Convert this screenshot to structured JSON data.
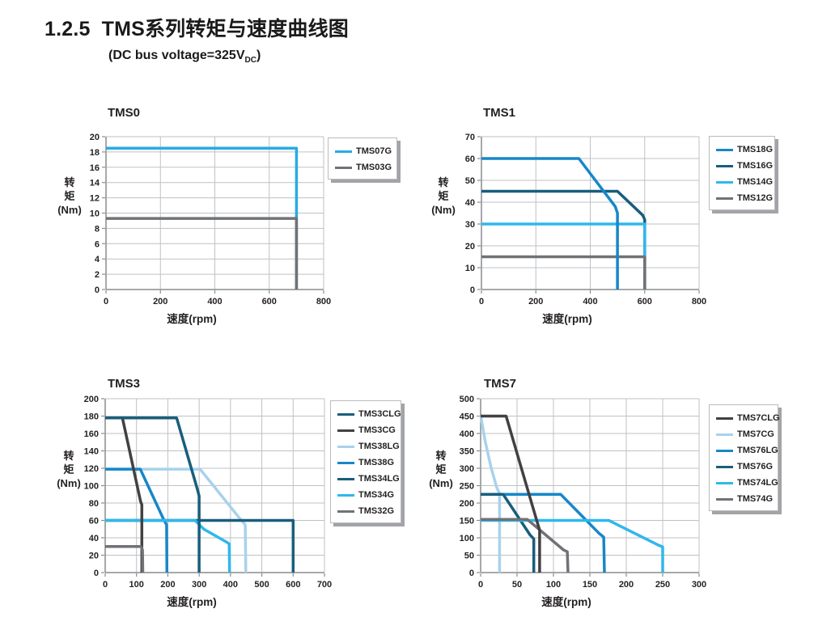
{
  "page": {
    "section_number": "1.2.5",
    "title": "TMS系列转矩与速度曲线图",
    "subtitle": {
      "prefix": "(DC bus voltage=325V",
      "sub": "DC",
      "suffix": ")"
    }
  },
  "colors": {
    "cyan": "#29ABE2",
    "cyan_bright": "#2FB8EC",
    "medium_blue": "#1787C8",
    "dark_blue": "#185E7C",
    "charcoal": "#414042",
    "gray": "#717276",
    "pale_blue": "#A8D2EC",
    "grid": "#BFC1C3",
    "axis": "#8A8C8F",
    "text": "#231F20"
  },
  "chart_data": [
    {
      "id": "tms0",
      "type": "line",
      "title": "TMS0",
      "xlabel": "速度(rpm)",
      "ylabel": "转矩(Nm)",
      "ylabel_lines": [
        "转",
        "矩",
        "(Nm)"
      ],
      "xlim": [
        0,
        800
      ],
      "xstep": 200,
      "ylim": [
        0,
        20
      ],
      "ystep": 2,
      "grid": true,
      "legend_position": "right",
      "series": [
        {
          "name": "TMS07G",
          "color_key": "cyan",
          "points": [
            [
              0,
              18.5
            ],
            [
              700,
              18.5
            ],
            [
              700,
              0
            ]
          ]
        },
        {
          "name": "TMS03G",
          "color_key": "gray",
          "points": [
            [
              0,
              9.3
            ],
            [
              700,
              9.3
            ],
            [
              700,
              0
            ]
          ]
        }
      ],
      "draw_order": [
        0,
        1
      ]
    },
    {
      "id": "tms1",
      "type": "line",
      "title": "TMS1",
      "xlabel": "速度(rpm)",
      "ylabel": "转矩(Nm)",
      "ylabel_lines": [
        "转",
        "矩",
        "(Nm)"
      ],
      "xlim": [
        0,
        800
      ],
      "xstep": 200,
      "ylim": [
        0,
        70
      ],
      "ystep": 10,
      "grid": true,
      "legend_position": "right",
      "series": [
        {
          "name": "TMS18G",
          "color_key": "medium_blue",
          "points": [
            [
              0,
              60
            ],
            [
              358,
              60
            ],
            [
              492,
              38
            ],
            [
              500,
              35
            ],
            [
              500,
              0
            ]
          ]
        },
        {
          "name": "TMS16G",
          "color_key": "dark_blue",
          "points": [
            [
              0,
              45
            ],
            [
              500,
              45
            ],
            [
              593,
              34
            ],
            [
              600,
              32
            ],
            [
              600,
              0
            ]
          ]
        },
        {
          "name": "TMS14G",
          "color_key": "cyan_bright",
          "points": [
            [
              0,
              30
            ],
            [
              600,
              30
            ],
            [
              600,
              0
            ]
          ]
        },
        {
          "name": "TMS12G",
          "color_key": "gray",
          "points": [
            [
              0,
              15
            ],
            [
              600,
              15
            ],
            [
              600,
              0
            ]
          ]
        }
      ],
      "draw_order": [
        1,
        2,
        3,
        0
      ]
    },
    {
      "id": "tms3",
      "type": "line",
      "title": "TMS3",
      "xlabel": "速度(rpm)",
      "ylabel": "转矩(Nm)",
      "ylabel_lines": [
        "转",
        "矩",
        "(Nm)"
      ],
      "xlim": [
        0,
        700
      ],
      "xstep": 100,
      "ylim": [
        0,
        200
      ],
      "ystep": 20,
      "grid": true,
      "legend_position": "right",
      "series": [
        {
          "name": "TMS3CLG",
          "color_key": "dark_blue",
          "points": [
            [
              0,
              178
            ],
            [
              228,
              178
            ],
            [
              295,
              95
            ],
            [
              300,
              88
            ],
            [
              300,
              0
            ]
          ]
        },
        {
          "name": "TMS3CG",
          "color_key": "charcoal",
          "points": [
            [
              0,
              178
            ],
            [
              55,
              178
            ],
            [
              113,
              82
            ],
            [
              117,
              78
            ],
            [
              117,
              0
            ]
          ]
        },
        {
          "name": "TMS38LG",
          "color_key": "pale_blue",
          "points": [
            [
              0,
              119
            ],
            [
              303,
              119
            ],
            [
              430,
              62
            ],
            [
              447,
              55
            ],
            [
              449,
              0
            ]
          ]
        },
        {
          "name": "TMS38G",
          "color_key": "medium_blue",
          "points": [
            [
              0,
              119
            ],
            [
              112,
              119
            ],
            [
              188,
              60
            ],
            [
              196,
              55
            ],
            [
              197,
              0
            ]
          ]
        },
        {
          "name": "TMS34LG",
          "color_key": "dark_blue",
          "points": [
            [
              0,
              60
            ],
            [
              600,
              60
            ],
            [
              600,
              0
            ]
          ]
        },
        {
          "name": "TMS34G",
          "color_key": "cyan_bright",
          "points": [
            [
              0,
              60
            ],
            [
              287,
              60
            ],
            [
              315,
              50
            ],
            [
              388,
              35
            ],
            [
              396,
              33
            ],
            [
              397,
              0
            ]
          ]
        },
        {
          "name": "TMS32G",
          "color_key": "gray",
          "points": [
            [
              0,
              30
            ],
            [
              114,
              30
            ],
            [
              119,
              26
            ],
            [
              120,
              0
            ]
          ]
        }
      ],
      "draw_order": [
        2,
        4,
        3,
        5,
        1,
        6,
        0
      ]
    },
    {
      "id": "tms7",
      "type": "line",
      "title": "TMS7",
      "xlabel": "速度(rpm)",
      "ylabel": "转矩(Nm)",
      "ylabel_lines": [
        "转",
        "矩",
        "(Nm)"
      ],
      "xlim": [
        0,
        300
      ],
      "xstep": 50,
      "ylim": [
        0,
        500
      ],
      "ystep": 50,
      "grid": true,
      "legend_position": "right",
      "series": [
        {
          "name": "TMS7CLG",
          "color_key": "charcoal",
          "points": [
            [
              0,
              450
            ],
            [
              35,
              450
            ],
            [
              77,
              150
            ],
            [
              81,
              122
            ],
            [
              81,
              0
            ]
          ]
        },
        {
          "name": "TMS7CG",
          "color_key": "pale_blue",
          "points": [
            [
              0,
              452
            ],
            [
              6,
              380
            ],
            [
              14,
              305
            ],
            [
              22,
              245
            ],
            [
              26,
              228
            ],
            [
              26,
              0
            ]
          ]
        },
        {
          "name": "TMS76LG",
          "color_key": "medium_blue",
          "points": [
            [
              0,
              225
            ],
            [
              110,
              225
            ],
            [
              163,
              112
            ],
            [
              169,
              102
            ],
            [
              170,
              0
            ]
          ]
        },
        {
          "name": "TMS76G",
          "color_key": "dark_blue",
          "points": [
            [
              0,
              225
            ],
            [
              31,
              225
            ],
            [
              68,
              108
            ],
            [
              73,
              97
            ],
            [
              73,
              0
            ]
          ]
        },
        {
          "name": "TMS74LG",
          "color_key": "cyan_bright",
          "points": [
            [
              0,
              150
            ],
            [
              176,
              150
            ],
            [
              243,
              80
            ],
            [
              250,
              74
            ],
            [
              250,
              0
            ]
          ]
        },
        {
          "name": "TMS74G",
          "color_key": "gray",
          "points": [
            [
              0,
              153
            ],
            [
              64,
              153
            ],
            [
              114,
              65
            ],
            [
              119,
              60
            ],
            [
              120,
              0
            ]
          ]
        }
      ],
      "draw_order": [
        1,
        2,
        3,
        4,
        5,
        0
      ]
    }
  ]
}
